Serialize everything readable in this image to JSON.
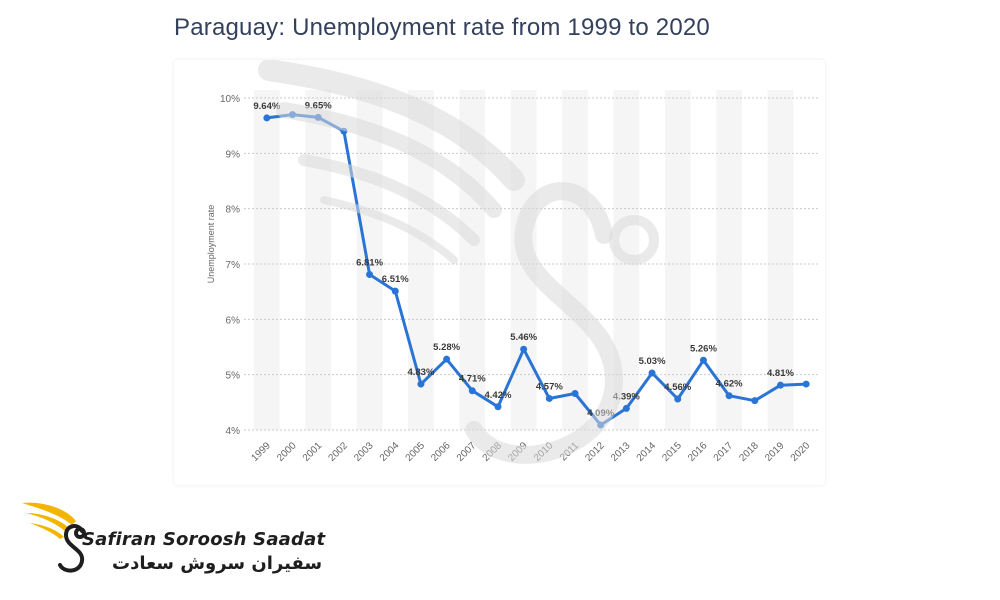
{
  "page": {
    "title": "Paraguay: Unemployment rate from 1999 to 2020"
  },
  "logo": {
    "name": "Safiran Soroosh Saadat",
    "name_fa": "سفیران سروش سعادت"
  },
  "colors": {
    "line": "#2a74d6",
    "title": "#33415c",
    "label": "#3a3a3a",
    "grid": "#c9c9c9",
    "column_band": "#f5f5f5",
    "logo_accent": "#f2b600"
  },
  "chart_data": {
    "type": "line",
    "title": "",
    "xlabel": "",
    "ylabel": "Unemployment rate",
    "ylim": [
      4,
      10
    ],
    "yticks": [
      "4%",
      "5%",
      "6%",
      "7%",
      "8%",
      "9%",
      "10%"
    ],
    "grid": true,
    "categories": [
      "1999",
      "2000",
      "2001",
      "2002",
      "2003",
      "2004",
      "2005",
      "2006",
      "2007",
      "2008",
      "2009",
      "2010",
      "2011",
      "2012",
      "2013",
      "2014",
      "2015",
      "2016",
      "2017",
      "2018",
      "2019",
      "2020"
    ],
    "series": [
      {
        "values": [
          9.64,
          9.7,
          9.65,
          9.4,
          6.81,
          6.51,
          4.83,
          5.28,
          4.71,
          4.42,
          5.46,
          4.57,
          4.66,
          4.09,
          4.39,
          5.03,
          4.56,
          5.26,
          4.62,
          4.53,
          4.81,
          4.83
        ],
        "labels": [
          "9.64%",
          "",
          "9.65%",
          "",
          "6.81%",
          "6.51%",
          "4.83%",
          "5.28%",
          "4.71%",
          "4.42%",
          "5.46%",
          "4.57%",
          "",
          "4.09%",
          "4.39%",
          "5.03%",
          "4.56%",
          "5.26%",
          "4.62%",
          "",
          "4.81%",
          ""
        ]
      }
    ]
  }
}
